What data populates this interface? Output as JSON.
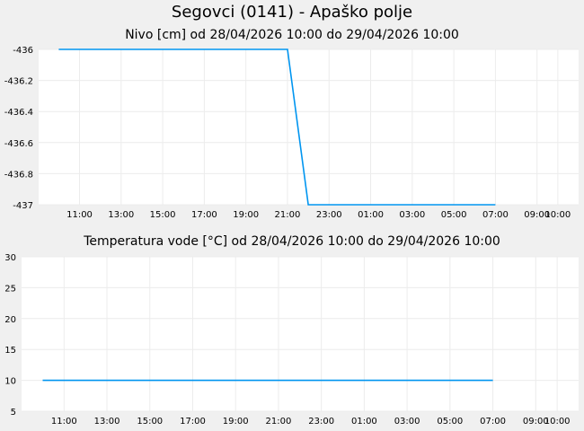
{
  "title": "Segovci (0141) - Apaško polje",
  "chart_data": [
    {
      "type": "line",
      "title": "Nivo [cm] od 28/04/2026 10:00 do 29/04/2026 10:00",
      "xlabel": "",
      "ylabel": "",
      "ylim": [
        -437,
        -436
      ],
      "y_ticks": [
        -436,
        -436.2,
        -436.4,
        -436.6,
        -436.8,
        -437
      ],
      "y_tick_labels": [
        "-436",
        "-436.2",
        "-436.4",
        "-436.6",
        "-436.8",
        "-437"
      ],
      "xlim": [
        "28/04/2026 09:02",
        "29/04/2026 11:00"
      ],
      "x_ticks": [
        "28/04/2026 11:00",
        "28/04/2026 13:00",
        "28/04/2026 15:00",
        "28/04/2026 17:00",
        "28/04/2026 19:00",
        "28/04/2026 21:00",
        "28/04/2026 23:00",
        "29/04/2026 01:00",
        "29/04/2026 03:00",
        "29/04/2026 05:00",
        "29/04/2026 07:00",
        "29/04/2026 09:00",
        "29/04/2026 10:00"
      ],
      "x_tick_labels": [
        "11:00",
        "13:00",
        "15:00",
        "17:00",
        "19:00",
        "21:00",
        "23:00",
        "01:00",
        "03:00",
        "05:00",
        "07:00",
        "09:00",
        "10:00"
      ],
      "grid": true,
      "color": "#0095f0",
      "series": [
        {
          "x": [
            "28/04/2026 10:00",
            "28/04/2026 21:00",
            "28/04/2026 22:00",
            "29/04/2026 07:00"
          ],
          "values": [
            -436,
            -436,
            -437,
            -437
          ]
        }
      ]
    },
    {
      "type": "line",
      "title": "Temperatura vode [°C] od 28/04/2026 10:00 do 29/04/2026 10:00",
      "xlabel": "",
      "ylabel": "",
      "ylim": [
        5,
        30
      ],
      "y_ticks": [
        30,
        25,
        20,
        15,
        10,
        5
      ],
      "y_tick_labels": [
        "30",
        "25",
        "20",
        "15",
        "10",
        "5"
      ],
      "xlim": [
        "28/04/2026 09:01",
        "29/04/2026 11:00"
      ],
      "x_ticks": [
        "28/04/2026 11:00",
        "28/04/2026 13:00",
        "28/04/2026 15:00",
        "28/04/2026 17:00",
        "28/04/2026 19:00",
        "28/04/2026 21:00",
        "28/04/2026 23:00",
        "29/04/2026 01:00",
        "29/04/2026 03:00",
        "29/04/2026 05:00",
        "29/04/2026 07:00",
        "29/04/2026 09:00",
        "29/04/2026 10:00"
      ],
      "x_tick_labels": [
        "11:00",
        "13:00",
        "15:00",
        "17:00",
        "19:00",
        "21:00",
        "23:00",
        "01:00",
        "03:00",
        "05:00",
        "07:00",
        "09:00",
        "10:00"
      ],
      "grid": true,
      "color": "#0095f0",
      "series": [
        {
          "x": [
            "28/04/2026 10:00",
            "29/04/2026 07:00"
          ],
          "values": [
            10,
            10
          ]
        }
      ]
    }
  ]
}
